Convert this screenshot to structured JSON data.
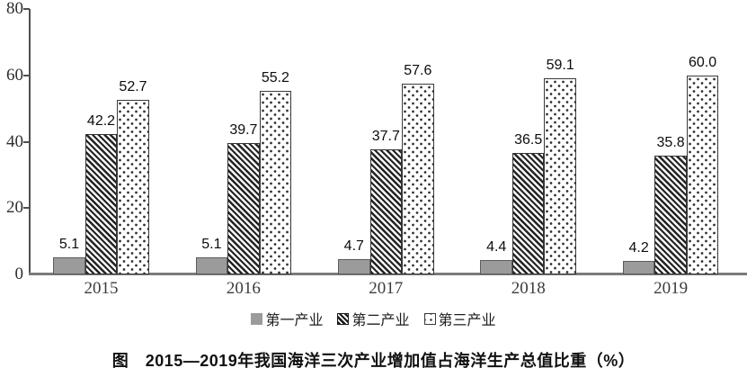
{
  "chart_data": {
    "type": "bar",
    "title": "图　2015—2019年我国海洋三次产业增加值占海洋生产总值比重（%）",
    "categories": [
      "2015",
      "2016",
      "2017",
      "2018",
      "2019"
    ],
    "series": [
      {
        "name": "第一产业",
        "pattern": "solid-gray",
        "values": [
          5.1,
          5.1,
          4.7,
          4.4,
          4.2
        ]
      },
      {
        "name": "第二产业",
        "pattern": "diagonal-hatch",
        "values": [
          42.2,
          39.7,
          37.7,
          36.5,
          35.8
        ]
      },
      {
        "name": "第三产业",
        "pattern": "dotted",
        "values": [
          52.7,
          55.2,
          57.6,
          59.1,
          60.0
        ]
      }
    ],
    "value_labels": true,
    "ylim": [
      0,
      80
    ],
    "yticks": [
      0,
      20,
      40,
      60,
      80
    ],
    "xlabel": "",
    "ylabel": "",
    "grid": false,
    "legend_position": "bottom"
  },
  "colors": {
    "bar_solid_fill": "#9b9b9b",
    "bar_border": "#3a3a3a",
    "hatch_stripe": "#232323",
    "dot_color": "#2f2f2f",
    "axis_line": "#4f4f4f",
    "baseline": "#7b7b7b",
    "text": "#111111"
  }
}
